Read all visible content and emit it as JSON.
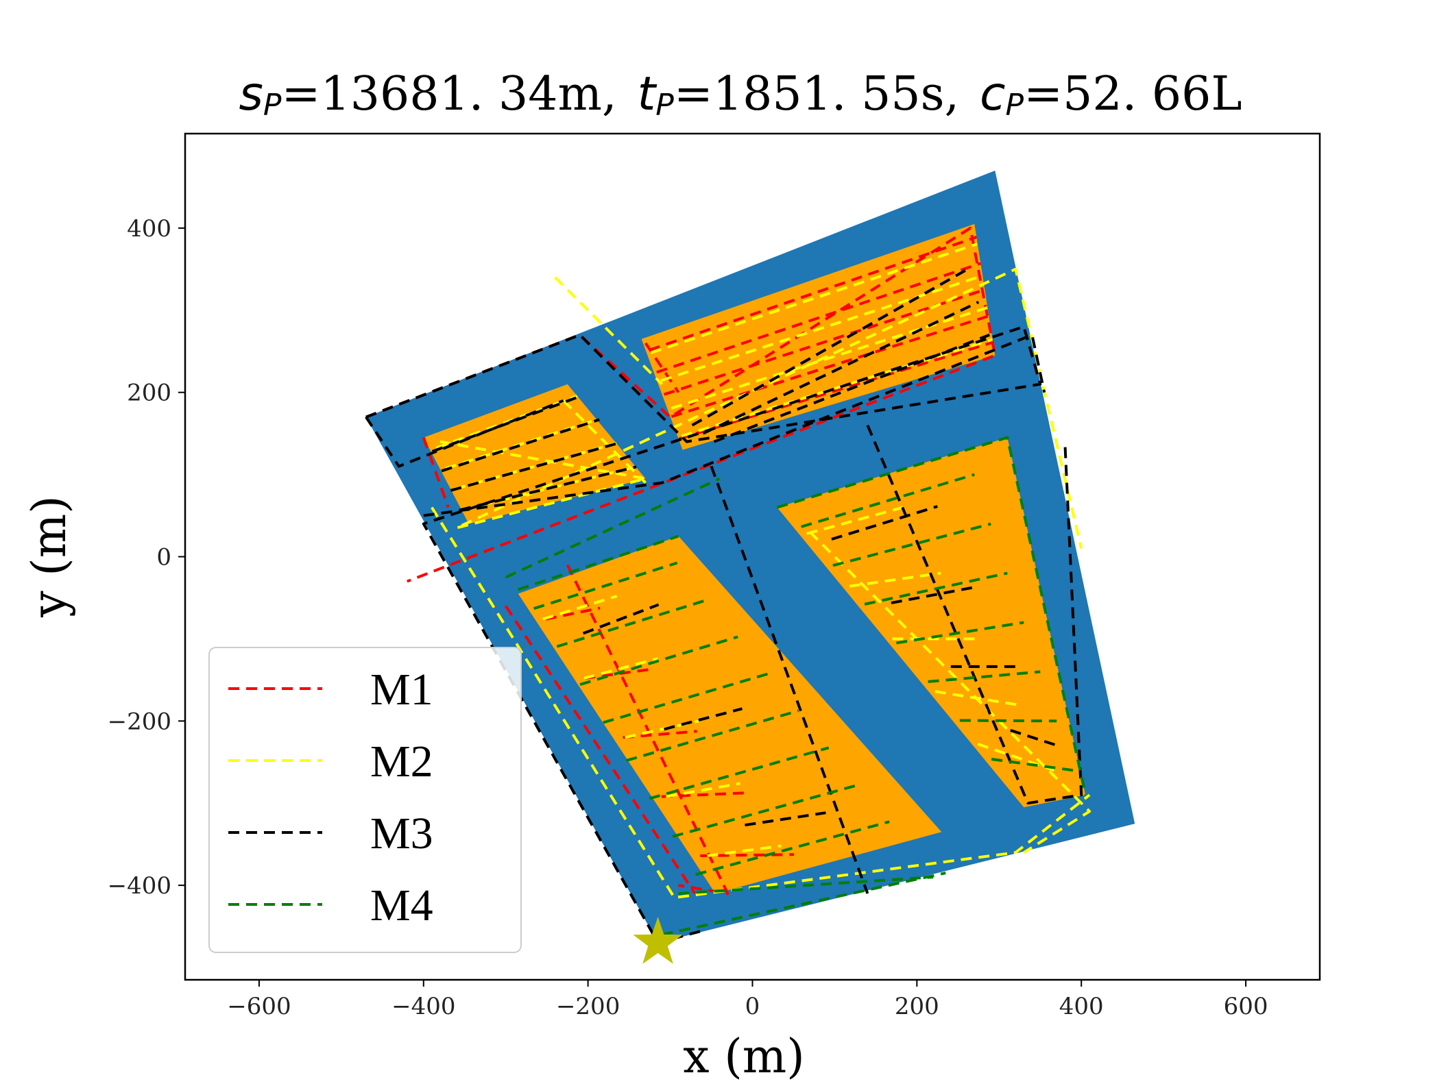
{
  "chart_data": {
    "type": "line",
    "title": {
      "s_symbol": "s",
      "s_sub": "P",
      "s_value": "=13681. 34m,",
      "t_symbol": "t",
      "t_sub": "P",
      "t_value": "=1851. 55s,",
      "c_symbol": "c",
      "c_sub": "P",
      "c_value": "=52. 66L"
    },
    "xlabel": "x (m)",
    "ylabel": "y (m)",
    "xlim": [
      -690,
      690
    ],
    "ylim": [
      -515,
      515
    ],
    "xticks": [
      -600,
      -400,
      -200,
      0,
      200,
      400,
      600
    ],
    "yticks": [
      -400,
      -200,
      0,
      200,
      400
    ],
    "xtick_labels": [
      "−600",
      "−400",
      "−200",
      "0",
      "200",
      "400",
      "600"
    ],
    "ytick_labels": [
      "−400",
      "−200",
      "0",
      "200",
      "400"
    ],
    "grid": false,
    "legend_position": "lower-left",
    "colors": {
      "field": "#1f77b4",
      "work_area": "#ffa500",
      "start_marker": "#bfbf00"
    },
    "field_boundary": [
      [
        -470,
        170
      ],
      [
        295,
        470
      ],
      [
        465,
        -325
      ],
      [
        -115,
        -470
      ]
    ],
    "work_areas": [
      [
        [
          -400,
          145
        ],
        [
          -225,
          210
        ],
        [
          -130,
          95
        ],
        [
          -345,
          40
        ]
      ],
      [
        [
          -135,
          265
        ],
        [
          270,
          405
        ],
        [
          295,
          245
        ],
        [
          -85,
          130
        ]
      ],
      [
        [
          -285,
          -45
        ],
        [
          -90,
          25
        ],
        [
          230,
          -335
        ],
        [
          -45,
          -410
        ]
      ],
      [
        [
          30,
          60
        ],
        [
          310,
          145
        ],
        [
          405,
          -290
        ],
        [
          330,
          -305
        ]
      ]
    ],
    "start_point": {
      "x": -115,
      "y": -470
    },
    "series": [
      {
        "name": "M1",
        "color": "#ff0000",
        "paths": [
          [
            [
              -470,
              170
            ],
            [
              -210,
              270
            ],
            [
              -100,
              170
            ],
            [
              265,
              400
            ],
            [
              295,
              245
            ],
            [
              -420,
              -30
            ]
          ],
          [
            [
              -400,
              145
            ],
            [
              -370,
              60
            ]
          ],
          [
            [
              -130,
              260
            ],
            [
              -90,
              200
            ]
          ],
          [
            [
              -225,
              -10
            ],
            [
              -30,
              -410
            ],
            [
              -90,
              -400
            ]
          ],
          [
            [
              -300,
              -60
            ],
            [
              -70,
              -410
            ]
          ]
        ],
        "hatch": [
          {
            "from": [
              [
                -130,
                265
              ],
              [
                270,
                405
              ]
            ],
            "to": [
              [
                -85,
                130
              ],
              [
                295,
                245
              ]
            ],
            "count": 5
          },
          {
            "from": [
              [
                -275,
                -40
              ],
              [
                -215,
                -25
              ]
            ],
            "to": [
              [
                -40,
                -400
              ],
              [
                80,
                -400
              ]
            ],
            "count": 5
          }
        ]
      },
      {
        "name": "M2",
        "color": "#ffff00",
        "paths": [
          [
            [
              -390,
              60
            ],
            [
              -95,
              -415
            ],
            [
              320,
              -360
            ],
            [
              410,
              -290
            ]
          ],
          [
            [
              -380,
              140
            ],
            [
              -130,
              95
            ],
            [
              -360,
              35
            ],
            [
              320,
              350
            ],
            [
              400,
              10
            ]
          ],
          [
            [
              70,
              30
            ],
            [
              410,
              -310
            ],
            [
              330,
              -360
            ]
          ],
          [
            [
              -230,
              190
            ],
            [
              -130,
              90
            ]
          ],
          [
            [
              -240,
              340
            ],
            [
              -110,
              210
            ]
          ]
        ],
        "hatch": [
          {
            "from": [
              [
                -390,
                145
              ],
              [
                -225,
                210
              ]
            ],
            "to": [
              [
                -345,
                45
              ],
              [
                -130,
                95
              ]
            ],
            "count": 4
          },
          {
            "from": [
              [
                -130,
                265
              ],
              [
                270,
                400
              ]
            ],
            "to": [
              [
                -80,
                130
              ],
              [
                295,
                245
              ]
            ],
            "count": 4
          },
          {
            "from": [
              [
                -280,
                -40
              ],
              [
                -190,
                -10
              ]
            ],
            "to": [
              [
                -30,
                -400
              ],
              [
                60,
                -390
              ]
            ],
            "count": 5
          },
          {
            "from": [
              [
                40,
                60
              ],
              [
                160,
                100
              ]
            ],
            "to": [
              [
                300,
                -260
              ],
              [
                390,
                -300
              ]
            ],
            "count": 5
          }
        ]
      },
      {
        "name": "M3",
        "color": "#000000",
        "paths": [
          [
            [
              -470,
              170
            ],
            [
              -210,
              270
            ],
            [
              -80,
              140
            ],
            [
              350,
              210
            ],
            [
              330,
              280
            ],
            [
              -400,
              40
            ],
            [
              -115,
              -470
            ],
            [
              -60,
              -455
            ]
          ],
          [
            [
              -470,
              170
            ],
            [
              -430,
              110
            ],
            [
              -230,
              190
            ]
          ],
          [
            [
              -400,
              50
            ],
            [
              -110,
              90
            ],
            [
              340,
              270
            ],
            [
              355,
              200
            ]
          ],
          [
            [
              -50,
              110
            ],
            [
              140,
              -410
            ]
          ],
          [
            [
              140,
              160
            ],
            [
              335,
              -300
            ],
            [
              400,
              -290
            ],
            [
              380,
              140
            ]
          ]
        ],
        "hatch": [
          {
            "from": [
              [
                -395,
                140
              ],
              [
                -220,
                210
              ]
            ],
            "to": [
              [
                -350,
                45
              ],
              [
                -130,
                95
              ]
            ],
            "count": 4
          },
          {
            "from": [
              [
                -80,
                165
              ],
              [
                255,
                370
              ]
            ],
            "to": [
              [
                -40,
                135
              ],
              [
                295,
                250
              ]
            ],
            "count": 3
          },
          {
            "from": [
              [
                -255,
                -35
              ],
              [
                -165,
                5
              ]
            ],
            "to": [
              [
                40,
                -385
              ],
              [
                140,
                -375
              ]
            ],
            "count": 3
          },
          {
            "from": [
              [
                60,
                60
              ],
              [
                200,
                110
              ]
            ],
            "to": [
              [
                350,
                -250
              ],
              [
                400,
                -280
              ]
            ],
            "count": 4
          }
        ]
      },
      {
        "name": "M4",
        "color": "#008000",
        "paths": [
          [
            [
              -285,
              -40
            ],
            [
              -90,
              25
            ]
          ],
          [
            [
              -90,
              -410
            ],
            [
              220,
              -390
            ]
          ],
          [
            [
              -110,
              -460
            ],
            [
              235,
              -385
            ]
          ],
          [
            [
              -300,
              -25
            ],
            [
              -40,
              95
            ]
          ],
          [
            [
              30,
              60
            ],
            [
              310,
              145
            ],
            [
              405,
              -290
            ]
          ]
        ],
        "hatch": [
          {
            "from": [
              [
                -280,
                -40
              ],
              [
                -110,
                15
              ]
            ],
            "to": [
              [
                -55,
                -410
              ],
              [
                185,
                -345
              ]
            ],
            "count": 8
          },
          {
            "from": [
              [
                40,
                60
              ],
              [
                260,
                130
              ]
            ],
            "to": [
              [
                310,
                -270
              ],
              [
                400,
                -290
              ]
            ],
            "count": 7
          }
        ]
      }
    ]
  }
}
